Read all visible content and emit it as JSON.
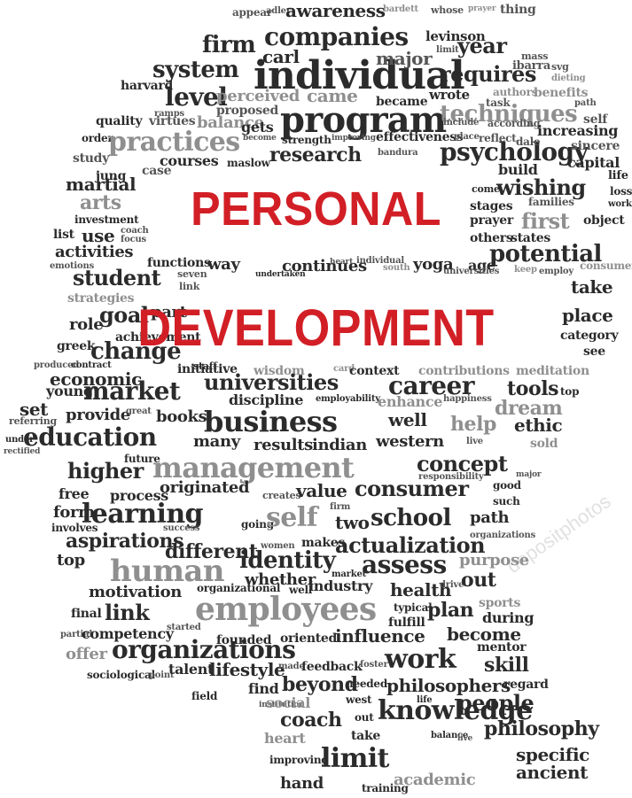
{
  "title_line_1": "PERSONAL",
  "title_line_2": "DEVELOPMENT",
  "watermark": "depositphotos",
  "colors": {
    "title": "#d21f26",
    "dark": "#2b2b2b",
    "mid": "#555555",
    "gray": "#8f8f8f",
    "light": "#bdbdbd"
  },
  "words": [
    "appear",
    "adler",
    "awareness",
    "bardett",
    "whose",
    "prayer",
    "thing",
    "firm",
    "companies",
    "levinson",
    "year",
    "mass",
    "ibarra",
    "svg",
    "system",
    "carl",
    "individual",
    "requires",
    "major",
    "limit",
    "dieting",
    "harvard",
    "level",
    "perceived",
    "came",
    "wrote",
    "benefits",
    "authors",
    "ramps",
    "proposed",
    "balance",
    "program",
    "became",
    "task",
    "techniques",
    "self",
    "quality",
    "virtues",
    "gets",
    "strength",
    "improving",
    "include",
    "according",
    "path",
    "order",
    "practices",
    "become",
    "effectiveness",
    "place",
    "psychology",
    "increasing",
    "sincere",
    "study",
    "courses",
    "maslow",
    "research",
    "bandura",
    "reflect",
    "dale",
    "capital",
    "jung",
    "case",
    "build",
    "life",
    "loss",
    "martial",
    "come",
    "wishing",
    "work",
    "arts",
    "stages",
    "families",
    "first",
    "object",
    "investment",
    "prayer",
    "list",
    "use",
    "coach",
    "focus",
    "others",
    "states",
    "activities",
    "potential",
    "consumer",
    "functions",
    "way",
    "continues",
    "yoga",
    "age",
    "keep",
    "employ",
    "take",
    "emotions",
    "student",
    "seven",
    "link",
    "undertaken",
    "heart",
    "individual",
    "south",
    "universities",
    "strategies",
    "goal",
    "part",
    "place",
    "role",
    "achievement",
    "category",
    "greek",
    "change",
    "initiative",
    "wisdom",
    "card",
    "context",
    "contributions",
    "meditation",
    "produced",
    "contract",
    "economic",
    "staff",
    "see",
    "young",
    "market",
    "universities",
    "career",
    "tools",
    "top",
    "set",
    "referring",
    "provide",
    "great",
    "books",
    "discipline",
    "employability",
    "enhance",
    "happiness",
    "dream",
    "under",
    "education",
    "business",
    "well",
    "help",
    "ethic",
    "rectified",
    "many",
    "results",
    "indian",
    "western",
    "live",
    "sold",
    "higher",
    "future",
    "management",
    "concept",
    "free",
    "process",
    "originated",
    "responsibility",
    "major",
    "form",
    "learning",
    "creates",
    "consumer",
    "value",
    "good",
    "such",
    "involves",
    "going",
    "self",
    "two",
    "school",
    "path",
    "aspirations",
    "success",
    "firm",
    "top",
    "different",
    "women",
    "makes",
    "actualization",
    "organizations",
    "human",
    "identity",
    "assess",
    "purpose",
    "motivation",
    "whether",
    "market",
    "organizational",
    "well",
    "industry",
    "health",
    "drive",
    "out",
    "final",
    "link",
    "employees",
    "typical",
    "plan",
    "sports",
    "during",
    "partial",
    "competency",
    "started",
    "fulfill",
    "become",
    "offer",
    "organizations",
    "founded",
    "oriented",
    "influence",
    "mentor",
    "sociological",
    "point",
    "talent",
    "lifestyle",
    "made",
    "feedback",
    "foster",
    "work",
    "skill",
    "field",
    "find",
    "beyond",
    "needed",
    "philosophers",
    "regard",
    "institution",
    "social",
    "west",
    "life",
    "people",
    "heart",
    "coach",
    "out",
    "knowledge",
    "philosophy",
    "take",
    "balance",
    "live",
    "specific",
    "improving",
    "limit",
    "ancient",
    "hand",
    "training",
    "academic"
  ]
}
